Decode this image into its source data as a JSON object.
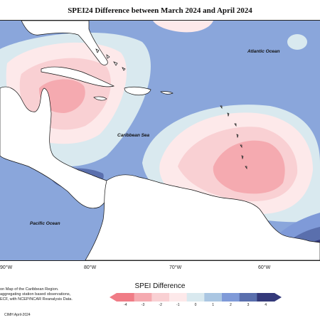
{
  "title": "SPEI24 Difference between March 2024 and April 2024",
  "places": {
    "atlantic": "Atlantic Ocean",
    "caribbean": "Caribbean Sea",
    "pacific": "Pacific Ocean"
  },
  "longitudes": [
    "90°W",
    "80°W",
    "70°W",
    "60°W"
  ],
  "notes": [
    "on Map of the Caribbean Region.",
    "aggregating station based observations,",
    "ECF, with NCEP/NCAR Reanalysis Data."
  ],
  "credit": "CIMH April-2024",
  "legend": {
    "title": "SPEI Difference",
    "ticks": [
      "-4",
      "-3",
      "-2",
      "-1",
      "0",
      "1",
      "2",
      "3",
      "4"
    ],
    "colors": [
      "#f07c86",
      "#f5aab0",
      "#f9d0d3",
      "#fde9ea",
      "#d9e9ef",
      "#aac6e2",
      "#7f9ad8",
      "#5a6fad",
      "#34397a"
    ]
  },
  "colors": {
    "land": "#ffffff",
    "coast": "#111111"
  }
}
